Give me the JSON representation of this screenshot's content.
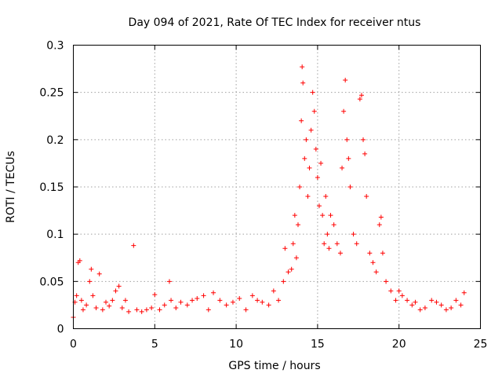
{
  "chart_data": {
    "type": "scatter",
    "title": "Day 094 of 2021, Rate Of TEC Index for receiver ntus",
    "xlabel": "GPS time / hours",
    "ylabel": "ROTI / TECUs",
    "xlim": [
      0,
      25
    ],
    "ylim": [
      0,
      0.3
    ],
    "xticks": [
      0,
      5,
      10,
      15,
      20,
      25
    ],
    "xtick_labels": [
      "0",
      "5",
      "10",
      "15",
      "20",
      "25"
    ],
    "yticks": [
      0,
      0.05,
      0.1,
      0.15,
      0.2,
      0.25,
      0.3
    ],
    "ytick_labels": [
      "0",
      "0.05",
      "0.1",
      "0.15",
      "0.2",
      "0.25",
      "0.3"
    ],
    "grid": true,
    "marker": "+",
    "color": "#ff0000",
    "series": [
      {
        "name": "ROTI",
        "x": [
          0.0,
          0.1,
          0.2,
          0.3,
          0.4,
          0.5,
          0.6,
          0.8,
          1.0,
          1.1,
          1.2,
          1.4,
          1.6,
          1.8,
          2.0,
          2.2,
          2.4,
          2.6,
          2.8,
          3.0,
          3.2,
          3.4,
          3.7,
          3.9,
          4.2,
          4.5,
          4.8,
          5.0,
          5.3,
          5.6,
          5.9,
          6.0,
          6.3,
          6.6,
          7.0,
          7.3,
          7.6,
          8.0,
          8.3,
          8.6,
          9.0,
          9.4,
          9.8,
          10.2,
          10.6,
          11.0,
          11.3,
          11.6,
          12.0,
          12.3,
          12.6,
          12.9,
          13.0,
          13.2,
          13.4,
          13.5,
          13.6,
          13.7,
          13.8,
          13.9,
          14.0,
          14.05,
          14.1,
          14.2,
          14.3,
          14.4,
          14.5,
          14.6,
          14.7,
          14.8,
          14.9,
          15.0,
          15.1,
          15.2,
          15.3,
          15.4,
          15.5,
          15.6,
          15.7,
          15.8,
          16.0,
          16.2,
          16.4,
          16.5,
          16.6,
          16.7,
          16.8,
          16.9,
          17.0,
          17.2,
          17.4,
          17.6,
          17.7,
          17.8,
          17.9,
          18.0,
          18.2,
          18.4,
          18.6,
          18.8,
          18.9,
          19.0,
          19.2,
          19.5,
          19.8,
          20.0,
          20.2,
          20.5,
          20.8,
          21.0,
          21.3,
          21.6,
          22.0,
          22.3,
          22.6,
          22.9,
          23.2,
          23.5,
          23.8,
          24.0
        ],
        "y": [
          0.012,
          0.028,
          0.035,
          0.07,
          0.072,
          0.03,
          0.02,
          0.025,
          0.05,
          0.063,
          0.035,
          0.022,
          0.058,
          0.02,
          0.028,
          0.024,
          0.03,
          0.04,
          0.045,
          0.022,
          0.03,
          0.018,
          0.088,
          0.02,
          0.018,
          0.02,
          0.022,
          0.036,
          0.02,
          0.025,
          0.05,
          0.03,
          0.022,
          0.028,
          0.025,
          0.03,
          0.032,
          0.035,
          0.02,
          0.038,
          0.03,
          0.025,
          0.028,
          0.032,
          0.02,
          0.035,
          0.03,
          0.028,
          0.025,
          0.04,
          0.03,
          0.05,
          0.085,
          0.06,
          0.063,
          0.09,
          0.12,
          0.075,
          0.11,
          0.15,
          0.22,
          0.277,
          0.26,
          0.18,
          0.2,
          0.14,
          0.17,
          0.21,
          0.25,
          0.23,
          0.19,
          0.16,
          0.13,
          0.175,
          0.12,
          0.09,
          0.14,
          0.1,
          0.085,
          0.12,
          0.11,
          0.09,
          0.08,
          0.17,
          0.23,
          0.263,
          0.2,
          0.18,
          0.15,
          0.1,
          0.09,
          0.243,
          0.247,
          0.2,
          0.185,
          0.14,
          0.08,
          0.07,
          0.06,
          0.11,
          0.118,
          0.08,
          0.05,
          0.04,
          0.03,
          0.04,
          0.035,
          0.03,
          0.025,
          0.028,
          0.02,
          0.022,
          0.03,
          0.028,
          0.025,
          0.02,
          0.022,
          0.03,
          0.025,
          0.038
        ]
      }
    ]
  }
}
